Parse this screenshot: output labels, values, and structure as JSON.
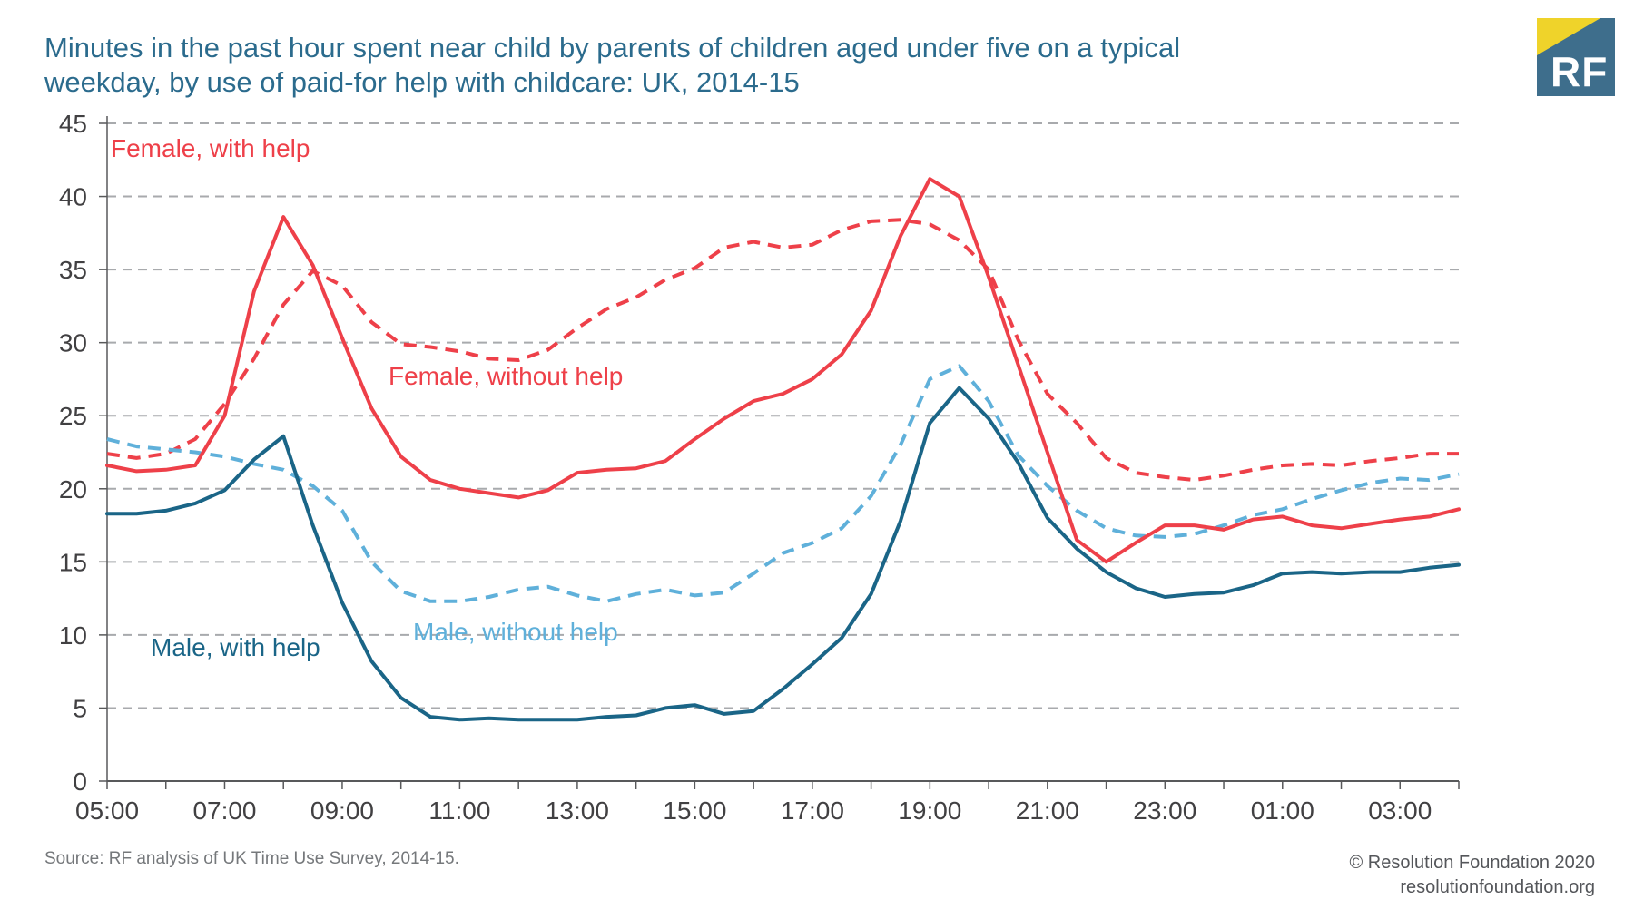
{
  "header": {
    "title_line1": "Minutes in the past hour spent near child by parents of children aged under five on a typical",
    "title_line2": "weekday, by use of paid-for help with childcare: UK, 2014-15",
    "logo_text": "RF"
  },
  "chart_data": {
    "type": "line",
    "title": "Minutes in the past hour spent near child by parents of children aged under five on a typical weekday, by use of paid-for help with childcare: UK, 2014-15",
    "ylabel": "",
    "xlabel": "",
    "ylim": [
      0,
      45
    ],
    "y_ticks": [
      0,
      5,
      10,
      15,
      20,
      25,
      30,
      35,
      40,
      45
    ],
    "x_tick_labels": [
      "05:00",
      "07:00",
      "09:00",
      "11:00",
      "13:00",
      "15:00",
      "17:00",
      "19:00",
      "21:00",
      "23:00",
      "01:00",
      "03:00"
    ],
    "grid": "horizontal-dashed",
    "legend_position": "inline-annotations",
    "x": [
      "05:00",
      "05:30",
      "06:00",
      "06:30",
      "07:00",
      "07:30",
      "08:00",
      "08:30",
      "09:00",
      "09:30",
      "10:00",
      "10:30",
      "11:00",
      "11:30",
      "12:00",
      "12:30",
      "13:00",
      "13:30",
      "14:00",
      "14:30",
      "15:00",
      "15:30",
      "16:00",
      "16:30",
      "17:00",
      "17:30",
      "18:00",
      "18:30",
      "19:00",
      "19:30",
      "20:00",
      "20:30",
      "21:00",
      "21:30",
      "22:00",
      "22:30",
      "23:00",
      "23:30",
      "00:00",
      "00:30",
      "01:00",
      "01:30",
      "02:00",
      "02:30",
      "03:00",
      "03:30",
      "04:00"
    ],
    "series": [
      {
        "name": "Female, with help",
        "color": "#ee4049",
        "style": "solid",
        "values": [
          21.6,
          21.2,
          21.3,
          21.6,
          25.0,
          33.5,
          38.6,
          35.3,
          30.3,
          25.5,
          22.2,
          20.6,
          20.0,
          19.7,
          19.4,
          19.9,
          21.1,
          21.3,
          21.4,
          21.9,
          23.4,
          24.8,
          26.0,
          26.5,
          27.5,
          29.2,
          32.2,
          37.3,
          41.2,
          40.0,
          34.5,
          28.5,
          22.5,
          16.5,
          15.0,
          16.3,
          17.5,
          17.5,
          17.2,
          17.9,
          18.1,
          17.5,
          17.3,
          17.6,
          17.9,
          18.1,
          18.6
        ]
      },
      {
        "name": "Female, without help",
        "color": "#ee4049",
        "style": "dashed",
        "values": [
          22.4,
          22.1,
          22.4,
          23.4,
          25.8,
          28.9,
          32.6,
          34.9,
          33.9,
          31.4,
          29.9,
          29.7,
          29.4,
          28.9,
          28.8,
          29.5,
          31.0,
          32.3,
          33.1,
          34.3,
          35.1,
          36.5,
          36.9,
          36.5,
          36.7,
          37.7,
          38.3,
          38.4,
          38.1,
          37.0,
          35.0,
          30.2,
          26.5,
          24.5,
          22.1,
          21.1,
          20.8,
          20.6,
          20.9,
          21.3,
          21.6,
          21.7,
          21.6,
          21.9,
          22.1,
          22.4,
          22.4
        ]
      },
      {
        "name": "Male, without help",
        "color": "#5fb0da",
        "style": "dashed",
        "values": [
          23.4,
          22.9,
          22.7,
          22.5,
          22.2,
          21.7,
          21.3,
          20.2,
          18.5,
          15.0,
          13.0,
          12.3,
          12.3,
          12.6,
          13.1,
          13.3,
          12.7,
          12.3,
          12.8,
          13.1,
          12.7,
          12.9,
          14.2,
          15.6,
          16.3,
          17.3,
          19.5,
          23.0,
          27.5,
          28.4,
          26.0,
          22.3,
          20.2,
          18.5,
          17.3,
          16.8,
          16.7,
          16.9,
          17.5,
          18.2,
          18.6,
          19.3,
          19.9,
          20.4,
          20.7,
          20.6,
          21.0
        ]
      },
      {
        "name": "Male, with help",
        "color": "#1a6587",
        "style": "solid",
        "values": [
          18.3,
          18.3,
          18.5,
          19.0,
          19.9,
          22.0,
          23.6,
          17.5,
          12.2,
          8.2,
          5.7,
          4.4,
          4.2,
          4.3,
          4.2,
          4.2,
          4.2,
          4.4,
          4.5,
          5.0,
          5.2,
          4.6,
          4.8,
          6.3,
          8.0,
          9.8,
          12.8,
          17.8,
          24.5,
          26.9,
          24.8,
          21.8,
          18.0,
          15.9,
          14.3,
          13.2,
          12.6,
          12.8,
          12.9,
          13.4,
          14.2,
          14.3,
          14.2,
          14.3,
          14.3,
          14.6,
          14.8
        ]
      }
    ]
  },
  "source": "Source: RF analysis of UK Time Use Survey, 2014-15.",
  "footer": {
    "copyright": "© Resolution Foundation 2020",
    "website": "resolutionfoundation.org"
  },
  "colors": {
    "title": "#2b6b8d",
    "red": "#ee4049",
    "dark_blue": "#1a6587",
    "light_blue": "#5fb0da",
    "grid": "#a8aaad",
    "axis": "#58595b",
    "tick_text": "#414042",
    "logo_teal": "#3e6e8c",
    "logo_yellow": "#efd32a"
  }
}
